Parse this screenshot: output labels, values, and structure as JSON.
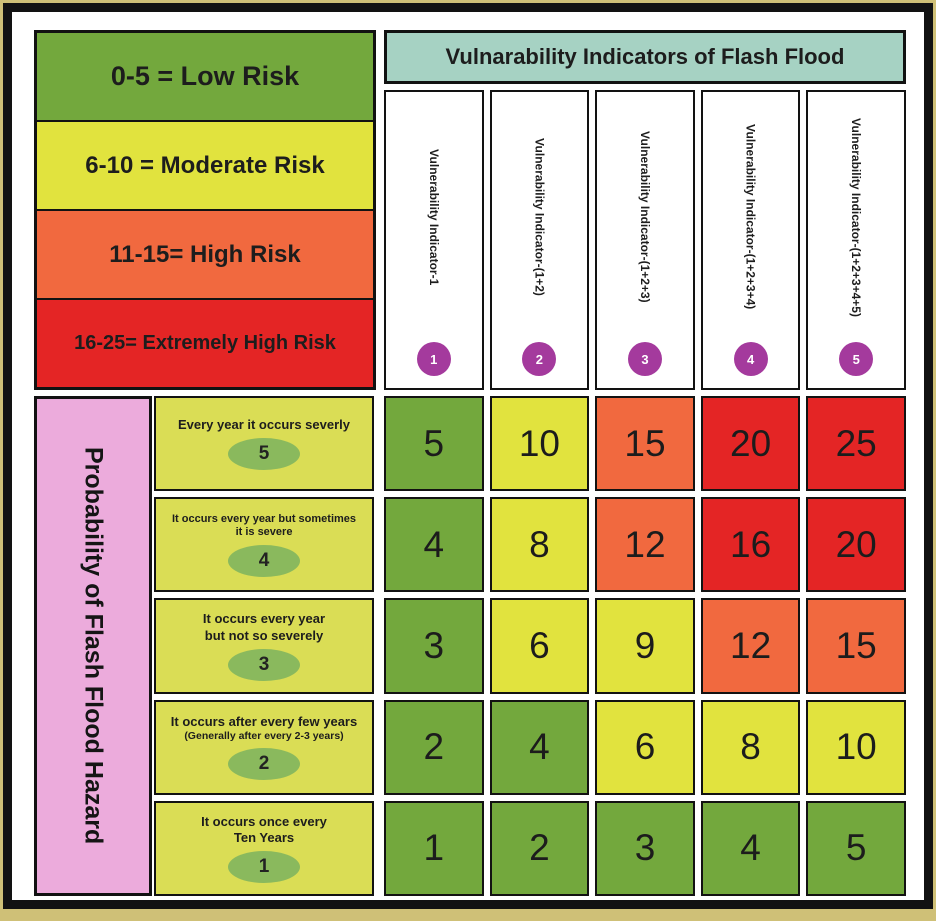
{
  "colors": {
    "low_risk": "#73a83d",
    "moderate_risk": "#e1e33e",
    "high_risk": "#f1693f",
    "extreme_risk": "#e42525",
    "header_teal": "#a6d2c3",
    "probability_pink": "#ecabdc",
    "badge_purple": "#a43a9d",
    "badge_oval_green": "#8ab95d",
    "probability_cell_yellow": "#dadd55",
    "frame_black": "#121212",
    "frame_tan": "#cfc077"
  },
  "legend": {
    "items": [
      {
        "label": "0-5 =  Low Risk",
        "risk": "low"
      },
      {
        "label": "6-10 = Moderate Risk",
        "risk": "moderate"
      },
      {
        "label": "11-15= High Risk",
        "risk": "high"
      },
      {
        "label": "16-25= Extremely High Risk",
        "risk": "extreme"
      }
    ]
  },
  "vulnerability": {
    "title": "Vulnarability Indicators of Flash Flood",
    "columns": [
      {
        "label": "Vulnerability Indicator-1",
        "badge": "1"
      },
      {
        "label": "Vulnerability Indicator-(1+2)",
        "badge": "2"
      },
      {
        "label": "Vulnerability Indicator-(1+2+3)",
        "badge": "3"
      },
      {
        "label": "Vulnerability Indicator-(1+2+3+4)",
        "badge": "4"
      },
      {
        "label": "Vulnerability Indicator-(1+2+3+4+5)",
        "badge": "5"
      }
    ]
  },
  "probability": {
    "title": "Probability of Flash Flood Hazard",
    "rows": [
      {
        "line1": "Every year it occurs severly",
        "line2": "",
        "badge": "5"
      },
      {
        "line1": "It occurs every year but sometimes",
        "line2": "it is severe",
        "badge": "4"
      },
      {
        "line1": "It occurs every year",
        "line2": "but not so severely",
        "badge": "3"
      },
      {
        "line1": "It occurs after every few years",
        "line2": "(Generally after every 2-3 years)",
        "badge": "2"
      },
      {
        "line1": "It occurs once every",
        "line2": "Ten Years",
        "badge": "1"
      }
    ]
  },
  "matrix": {
    "rows": [
      {
        "cells": [
          {
            "value": "5",
            "risk": "low"
          },
          {
            "value": "10",
            "risk": "moderate"
          },
          {
            "value": "15",
            "risk": "high"
          },
          {
            "value": "20",
            "risk": "extreme"
          },
          {
            "value": "25",
            "risk": "extreme"
          }
        ]
      },
      {
        "cells": [
          {
            "value": "4",
            "risk": "low"
          },
          {
            "value": "8",
            "risk": "moderate"
          },
          {
            "value": "12",
            "risk": "high"
          },
          {
            "value": "16",
            "risk": "extreme"
          },
          {
            "value": "20",
            "risk": "extreme"
          }
        ]
      },
      {
        "cells": [
          {
            "value": "3",
            "risk": "low"
          },
          {
            "value": "6",
            "risk": "moderate"
          },
          {
            "value": "9",
            "risk": "moderate"
          },
          {
            "value": "12",
            "risk": "high"
          },
          {
            "value": "15",
            "risk": "high"
          }
        ]
      },
      {
        "cells": [
          {
            "value": "2",
            "risk": "low"
          },
          {
            "value": "4",
            "risk": "low"
          },
          {
            "value": "6",
            "risk": "moderate"
          },
          {
            "value": "8",
            "risk": "moderate"
          },
          {
            "value": "10",
            "risk": "moderate"
          }
        ]
      },
      {
        "cells": [
          {
            "value": "1",
            "risk": "low"
          },
          {
            "value": "2",
            "risk": "low"
          },
          {
            "value": "3",
            "risk": "low"
          },
          {
            "value": "4",
            "risk": "low"
          },
          {
            "value": "5",
            "risk": "low"
          }
        ]
      }
    ]
  },
  "chart_data": {
    "type": "heatmap",
    "title": "Vulnarability Indicators of Flash Flood",
    "xlabel": "Vulnarability Indicators of Flash Flood",
    "ylabel": "Probability of Flash Flood Hazard",
    "x_categories": [
      "Vulnerability Indicator-1",
      "Vulnerability Indicator-(1+2)",
      "Vulnerability Indicator-(1+2+3)",
      "Vulnerability Indicator-(1+2+3+4)",
      "Vulnerability Indicator-(1+2+3+4+5)"
    ],
    "y_categories": [
      "5 - Every year it occurs severly",
      "4 - It occurs every year but sometimes it is severe",
      "3 - It occurs every year but not so severely",
      "2 - It occurs after every few years (Generally after every 2-3 years)",
      "1 - It occurs once every Ten Years"
    ],
    "values": [
      [
        5,
        10,
        15,
        20,
        25
      ],
      [
        4,
        8,
        12,
        16,
        20
      ],
      [
        3,
        6,
        9,
        12,
        15
      ],
      [
        2,
        4,
        6,
        8,
        10
      ],
      [
        1,
        2,
        3,
        4,
        5
      ]
    ],
    "risk_scale": [
      {
        "range": "0-5",
        "label": "Low Risk"
      },
      {
        "range": "6-10",
        "label": "Moderate Risk"
      },
      {
        "range": "11-15",
        "label": "High Risk"
      },
      {
        "range": "16-25",
        "label": "Extremely High Risk"
      }
    ],
    "legend_position": "top-left",
    "grid": true
  }
}
